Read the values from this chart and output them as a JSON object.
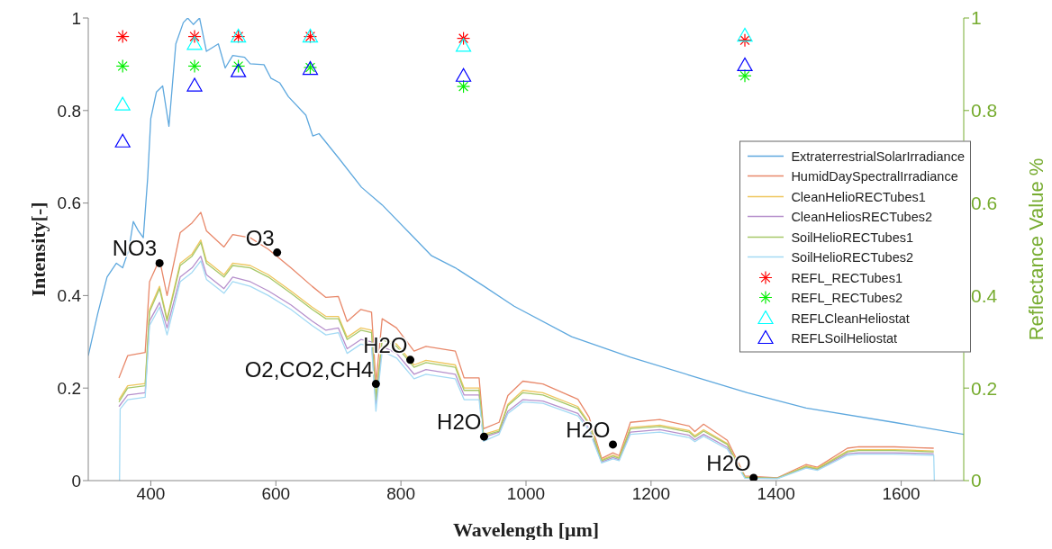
{
  "chart_data": {
    "type": "line",
    "xlabel": "Wavelength [μm]",
    "ylabel": "Intensity[-]",
    "y2label": "Reflectance Value %",
    "xlim": [
      300,
      1700
    ],
    "xticks": [
      400,
      600,
      800,
      1000,
      1200,
      1400,
      1600
    ],
    "ylim": [
      0,
      1
    ],
    "yticks": [
      0,
      0.2,
      0.4,
      0.6,
      0.8,
      1
    ],
    "y2lim": [
      0,
      1
    ],
    "y2ticks": [
      0,
      0.2,
      0.4,
      0.6,
      0.8,
      1
    ],
    "grid": false,
    "legend": "right",
    "marker": "none",
    "line_style": "solid",
    "series": [
      {
        "name": "ExtraterrestrialSolarIrradiance",
        "type": "line",
        "color": "#5ea8de",
        "x": [
          300,
          315,
          330,
          345,
          355,
          365,
          372,
          380,
          388,
          395,
          400,
          409,
          419,
          429,
          440,
          452,
          459,
          468,
          478,
          489,
          508,
          519,
          531,
          550,
          559,
          581,
          592,
          606,
          620,
          648,
          659,
          669,
          700,
          737,
          770,
          816,
          849,
          887,
          933,
          981,
          1073,
          1167,
          1261,
          1354,
          1448,
          1588,
          1700
        ],
        "values": [
          0.27,
          0.36,
          0.44,
          0.47,
          0.46,
          0.5,
          0.56,
          0.54,
          0.525,
          0.654,
          0.783,
          0.84,
          0.853,
          0.766,
          0.944,
          0.99,
          1.0,
          0.986,
          1.0,
          0.928,
          0.944,
          0.892,
          0.919,
          0.915,
          0.901,
          0.899,
          0.87,
          0.86,
          0.83,
          0.79,
          0.745,
          0.75,
          0.698,
          0.634,
          0.596,
          0.532,
          0.486,
          0.46,
          0.42,
          0.377,
          0.311,
          0.267,
          0.228,
          0.19,
          0.157,
          0.126,
          0.1
        ]
      },
      {
        "name": "HumidDaySpectralIrradiance",
        "type": "line",
        "color": "#e8886a",
        "x": [
          349,
          363,
          391,
          398,
          414,
          426,
          447,
          466,
          480,
          489,
          517,
          531,
          559,
          588,
          624,
          658,
          680,
          700,
          714,
          736,
          753,
          760,
          770,
          793,
          821,
          840,
          887,
          901,
          925,
          932,
          957,
          971,
          995,
          1027,
          1083,
          1101,
          1121,
          1139,
          1149,
          1167,
          1214,
          1261,
          1270,
          1284,
          1322,
          1350,
          1402,
          1448,
          1466,
          1514,
          1532,
          1589,
          1652
        ],
        "values": [
          0.222,
          0.27,
          0.277,
          0.43,
          0.478,
          0.4,
          0.536,
          0.557,
          0.58,
          0.54,
          0.505,
          0.532,
          0.525,
          0.5,
          0.46,
          0.42,
          0.396,
          0.398,
          0.344,
          0.37,
          0.364,
          0.21,
          0.35,
          0.33,
          0.28,
          0.29,
          0.28,
          0.222,
          0.222,
          0.112,
          0.126,
          0.184,
          0.215,
          0.209,
          0.176,
          0.137,
          0.048,
          0.06,
          0.054,
          0.126,
          0.132,
          0.118,
          0.106,
          0.122,
          0.087,
          0.01,
          0.006,
          0.035,
          0.029,
          0.07,
          0.073,
          0.073,
          0.07
        ]
      },
      {
        "name": "CleanHelioRECTubes1",
        "type": "line",
        "color": "#efc65e",
        "x": [
          349,
          363,
          391,
          398,
          414,
          426,
          447,
          466,
          480,
          489,
          517,
          531,
          559,
          588,
          624,
          658,
          680,
          700,
          714,
          736,
          753,
          760,
          770,
          793,
          821,
          840,
          887,
          901,
          925,
          932,
          957,
          971,
          995,
          1027,
          1083,
          1101,
          1121,
          1139,
          1149,
          1167,
          1214,
          1261,
          1270,
          1284,
          1322,
          1350,
          1402,
          1448,
          1466,
          1514,
          1532,
          1589,
          1652
        ],
        "values": [
          0.175,
          0.205,
          0.21,
          0.37,
          0.42,
          0.35,
          0.47,
          0.49,
          0.52,
          0.475,
          0.445,
          0.47,
          0.465,
          0.445,
          0.41,
          0.375,
          0.355,
          0.355,
          0.31,
          0.33,
          0.325,
          0.18,
          0.31,
          0.295,
          0.25,
          0.26,
          0.25,
          0.2,
          0.2,
          0.1,
          0.11,
          0.165,
          0.195,
          0.19,
          0.16,
          0.125,
          0.045,
          0.055,
          0.05,
          0.115,
          0.12,
          0.108,
          0.097,
          0.11,
          0.08,
          0.008,
          0.005,
          0.032,
          0.027,
          0.064,
          0.067,
          0.067,
          0.064
        ]
      },
      {
        "name": "CleanHeliosRECTubes2",
        "type": "line",
        "color": "#b690cc",
        "x": [
          349,
          363,
          391,
          398,
          414,
          426,
          447,
          466,
          480,
          489,
          517,
          531,
          559,
          588,
          624,
          658,
          680,
          700,
          714,
          736,
          753,
          760,
          770,
          793,
          821,
          840,
          887,
          901,
          925,
          932,
          957,
          971,
          995,
          1027,
          1083,
          1101,
          1121,
          1139,
          1149,
          1167,
          1214,
          1261,
          1270,
          1284,
          1322,
          1350,
          1402,
          1448,
          1466,
          1514,
          1532,
          1589,
          1652
        ],
        "values": [
          0.16,
          0.185,
          0.19,
          0.345,
          0.385,
          0.33,
          0.44,
          0.46,
          0.485,
          0.445,
          0.415,
          0.44,
          0.43,
          0.41,
          0.38,
          0.345,
          0.325,
          0.33,
          0.285,
          0.305,
          0.3,
          0.165,
          0.29,
          0.275,
          0.23,
          0.24,
          0.23,
          0.185,
          0.185,
          0.093,
          0.105,
          0.15,
          0.175,
          0.172,
          0.145,
          0.113,
          0.04,
          0.05,
          0.045,
          0.105,
          0.11,
          0.098,
          0.088,
          0.1,
          0.072,
          0.007,
          0.005,
          0.029,
          0.024,
          0.058,
          0.06,
          0.06,
          0.058
        ]
      },
      {
        "name": "SoilHelioRECTubes1",
        "type": "line",
        "color": "#a6c868",
        "x": [
          349,
          363,
          391,
          398,
          414,
          426,
          447,
          466,
          480,
          489,
          517,
          531,
          559,
          588,
          624,
          658,
          680,
          700,
          714,
          736,
          753,
          760,
          770,
          793,
          821,
          840,
          887,
          901,
          925,
          932,
          957,
          971,
          995,
          1027,
          1083,
          1101,
          1121,
          1139,
          1149,
          1167,
          1214,
          1261,
          1270,
          1284,
          1322,
          1350,
          1402,
          1448,
          1466,
          1514,
          1532,
          1589,
          1652
        ],
        "values": [
          0.17,
          0.2,
          0.205,
          0.365,
          0.415,
          0.345,
          0.465,
          0.485,
          0.515,
          0.47,
          0.44,
          0.465,
          0.46,
          0.44,
          0.405,
          0.37,
          0.35,
          0.35,
          0.305,
          0.325,
          0.32,
          0.175,
          0.305,
          0.29,
          0.245,
          0.255,
          0.245,
          0.195,
          0.195,
          0.097,
          0.107,
          0.162,
          0.19,
          0.185,
          0.156,
          0.122,
          0.043,
          0.053,
          0.048,
          0.112,
          0.117,
          0.105,
          0.094,
          0.107,
          0.078,
          0.007,
          0.005,
          0.03,
          0.025,
          0.062,
          0.065,
          0.065,
          0.062
        ]
      },
      {
        "name": "SoilHelioRECTubes2",
        "type": "line",
        "color": "#a4daf4",
        "x": [
          350,
          351,
          363,
          391,
          398,
          414,
          426,
          447,
          466,
          480,
          489,
          517,
          531,
          559,
          588,
          624,
          658,
          680,
          700,
          714,
          736,
          753,
          760,
          770,
          793,
          821,
          840,
          887,
          901,
          925,
          932,
          957,
          971,
          995,
          1027,
          1083,
          1101,
          1121,
          1139,
          1149,
          1167,
          1214,
          1261,
          1270,
          1284,
          1322,
          1350,
          1402,
          1448,
          1466,
          1514,
          1532,
          1589,
          1652,
          1653
        ],
        "values": [
          0,
          0.155,
          0.175,
          0.18,
          0.335,
          0.375,
          0.315,
          0.43,
          0.45,
          0.475,
          0.435,
          0.405,
          0.43,
          0.42,
          0.4,
          0.37,
          0.335,
          0.315,
          0.32,
          0.275,
          0.295,
          0.29,
          0.15,
          0.28,
          0.265,
          0.22,
          0.23,
          0.22,
          0.175,
          0.175,
          0.085,
          0.1,
          0.145,
          0.17,
          0.167,
          0.14,
          0.108,
          0.038,
          0.047,
          0.043,
          0.1,
          0.105,
          0.093,
          0.084,
          0.096,
          0.068,
          0.005,
          0.004,
          0.027,
          0.022,
          0.055,
          0.057,
          0.057,
          0.055,
          0
        ]
      },
      {
        "name": "REFL_RECTubes1",
        "type": "scatter",
        "axis": "y2",
        "marker": "cross",
        "color": "#ff0000",
        "x": [
          355,
          470,
          540,
          655,
          900,
          1350
        ],
        "values": [
          0.96,
          0.96,
          0.96,
          0.96,
          0.956,
          0.952
        ]
      },
      {
        "name": "REFL_RECTubes2",
        "type": "scatter",
        "axis": "y2",
        "marker": "cross",
        "color": "#00ee00",
        "x": [
          355,
          470,
          540,
          655,
          900,
          1350
        ],
        "values": [
          0.896,
          0.896,
          0.896,
          0.893,
          0.852,
          0.875
        ]
      },
      {
        "name": "REFLCleanHeliostat",
        "type": "scatter",
        "axis": "y2",
        "marker": "triangle",
        "color": "#00ffff",
        "x": [
          355,
          470,
          540,
          655,
          900,
          1350
        ],
        "values": [
          0.813,
          0.944,
          0.96,
          0.96,
          0.94,
          0.962
        ]
      },
      {
        "name": "REFLSoilHeliostat",
        "type": "scatter",
        "axis": "y2",
        "marker": "triangle",
        "color": "#0000ff",
        "x": [
          355,
          470,
          540,
          655,
          900,
          1350
        ],
        "values": [
          0.733,
          0.854,
          0.885,
          0.89,
          0.875,
          0.898
        ]
      }
    ],
    "annotations": [
      {
        "text": "NO3",
        "x": 414,
        "y": 0.47
      },
      {
        "text": "O3",
        "x": 602,
        "y": 0.493
      },
      {
        "text": "O2,CO2,CH4",
        "x": 760,
        "y": 0.209
      },
      {
        "text": "H2O",
        "x": 815,
        "y": 0.261
      },
      {
        "text": "H2O",
        "x": 933,
        "y": 0.095
      },
      {
        "text": "H2O",
        "x": 1139,
        "y": 0.078
      },
      {
        "text": "H2O",
        "x": 1364,
        "y": 0.006
      }
    ]
  }
}
